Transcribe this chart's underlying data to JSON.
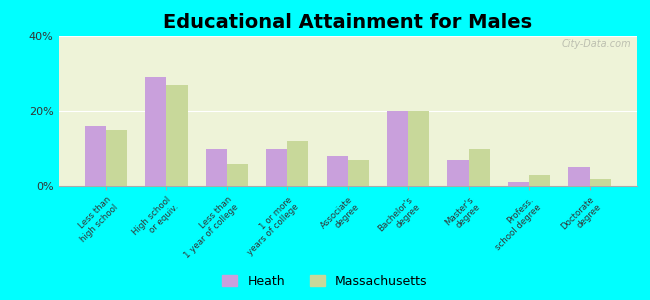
{
  "title": "Educational Attainment for Males",
  "categories": [
    "Less than\nhigh school",
    "High school\nor equiv.",
    "Less than\n1 year of college",
    "1 or more\nyears of college",
    "Associate\ndegree",
    "Bachelor's\ndegree",
    "Master's\ndegree",
    "Profess.\nschool degree",
    "Doctorate\ndegree"
  ],
  "heath_values": [
    16,
    29,
    10,
    10,
    8,
    20,
    7,
    1,
    5
  ],
  "mass_values": [
    15,
    27,
    6,
    12,
    7,
    20,
    10,
    3,
    2
  ],
  "heath_color": "#c9a0dc",
  "mass_color": "#c8d89a",
  "background_color": "#eef3d8",
  "outer_background": "#00ffff",
  "ylim": [
    0,
    40
  ],
  "yticks": [
    0,
    20,
    40
  ],
  "ytick_labels": [
    "0%",
    "20%",
    "40%"
  ],
  "legend_labels": [
    "Heath",
    "Massachusetts"
  ],
  "title_fontsize": 14,
  "watermark": "City-Data.com",
  "bar_width": 0.35
}
